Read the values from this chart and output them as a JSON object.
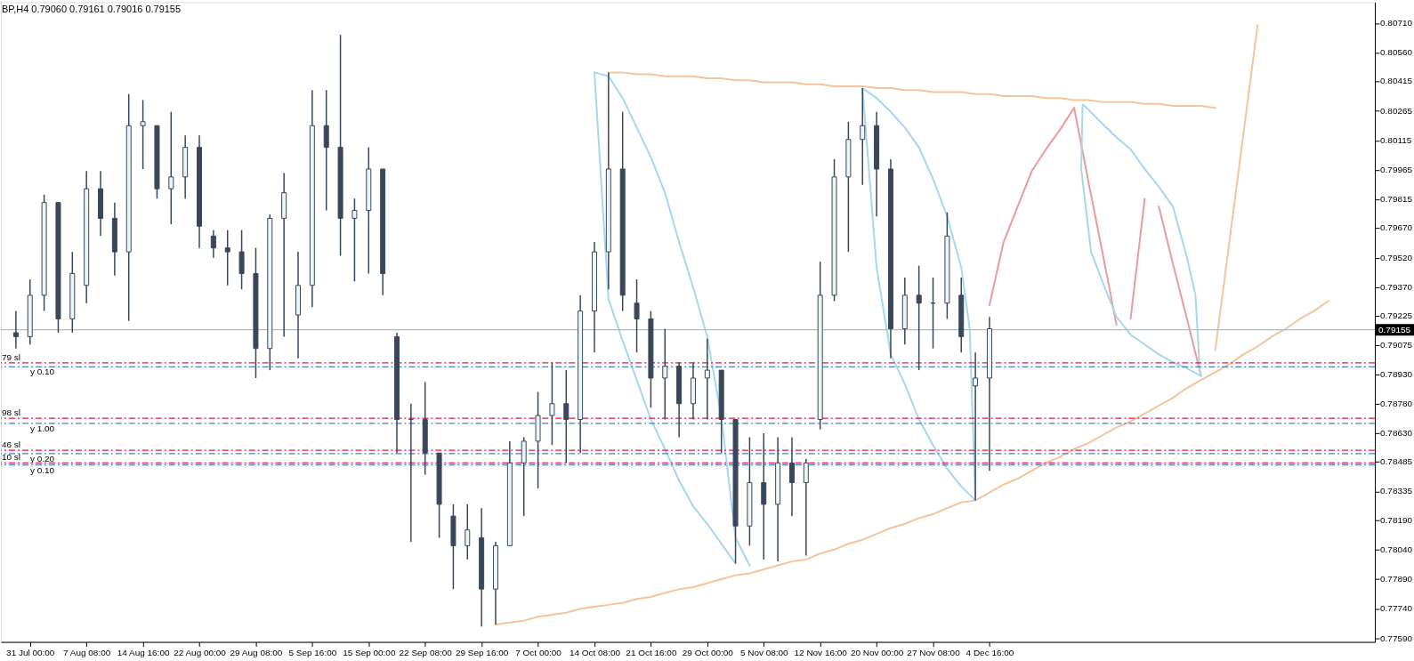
{
  "chart_data": {
    "type": "candlestick",
    "title": "BP,H4  0.79060 0.79161 0.79016 0.79155",
    "color": "#3a4759",
    "ylim": [
      0.77572,
      0.80816
    ],
    "yticks": [
      {
        "value": 0.8071,
        "label": "0.80710"
      },
      {
        "value": 0.8056,
        "label": "0.80560"
      },
      {
        "value": 0.80415,
        "label": "0.80415"
      },
      {
        "value": 0.80265,
        "label": "0.80265"
      },
      {
        "value": 0.80115,
        "label": "0.80115"
      },
      {
        "value": 0.79965,
        "label": "0.79965"
      },
      {
        "value": 0.79815,
        "label": "0.79815"
      },
      {
        "value": 0.7967,
        "label": "0.79670"
      },
      {
        "value": 0.7952,
        "label": "0.79520"
      },
      {
        "value": 0.7937,
        "label": "0.79370"
      },
      {
        "value": 0.79225,
        "label": "0.79225"
      },
      {
        "value": 0.79075,
        "label": "0.79075"
      },
      {
        "value": 0.7893,
        "label": "0.78930"
      },
      {
        "value": 0.7878,
        "label": "0.78780"
      },
      {
        "value": 0.7863,
        "label": "0.78630"
      },
      {
        "value": 0.78485,
        "label": "0.78485"
      },
      {
        "value": 0.78335,
        "label": "0.78335"
      },
      {
        "value": 0.7819,
        "label": "0.78190"
      },
      {
        "value": 0.7804,
        "label": "0.78040"
      },
      {
        "value": 0.7789,
        "label": "0.77890"
      },
      {
        "value": 0.7774,
        "label": "0.77740"
      },
      {
        "value": 0.7759,
        "label": "0.77590"
      }
    ],
    "categories": [
      null,
      "31 Jul 00:00",
      null,
      null,
      null,
      "7 Aug 08:00",
      null,
      null,
      null,
      "14 Aug 16:00",
      null,
      null,
      null,
      "22 Aug 00:00",
      null,
      null,
      null,
      "29 Aug 08:00",
      null,
      null,
      null,
      "5 Sep 16:00",
      null,
      null,
      null,
      "15 Sep 00:00",
      null,
      null,
      null,
      "22 Sep 08:00",
      null,
      null,
      null,
      "29 Sep 16:00",
      null,
      null,
      null,
      "7 Oct 00:00",
      null,
      null,
      null,
      "14 Oct 08:00",
      null,
      null,
      null,
      "21 Oct 16:00",
      null,
      null,
      null,
      "29 Oct 00:00",
      null,
      null,
      null,
      "5 Nov 08:00",
      null,
      null,
      null,
      "12 Nov 16:00",
      null,
      null,
      null,
      "20 Nov 00:00",
      null,
      null,
      null,
      "27 Nov 08:00",
      null,
      null,
      null,
      "4 Dec 16:00",
      null,
      null,
      null,
      null,
      null,
      null,
      null,
      null,
      null,
      null,
      null,
      null,
      null,
      null,
      null,
      null,
      null,
      null,
      null,
      null,
      null,
      null,
      null,
      null,
      null,
      null,
      null
    ],
    "ohlc": [
      [
        0.7914,
        0.7925,
        0.7906,
        0.7912
      ],
      [
        0.7912,
        0.7941,
        0.7908,
        0.7933
      ],
      [
        0.7933,
        0.7984,
        0.7925,
        0.798
      ],
      [
        0.798,
        0.798,
        0.7914,
        0.7921
      ],
      [
        0.7921,
        0.7955,
        0.7914,
        0.7944
      ],
      [
        0.7938,
        0.7996,
        0.7929,
        0.7987
      ],
      [
        0.7987,
        0.7996,
        0.7963,
        0.7972
      ],
      [
        0.7972,
        0.798,
        0.7943,
        0.7955
      ],
      [
        0.7955,
        0.8035,
        0.792,
        0.8019
      ],
      [
        0.8019,
        0.8032,
        0.7997,
        0.8021
      ],
      [
        0.8019,
        0.8019,
        0.7982,
        0.7987
      ],
      [
        0.7987,
        0.8026,
        0.7969,
        0.7993
      ],
      [
        0.7993,
        0.8014,
        0.7982,
        0.8008
      ],
      [
        0.8008,
        0.8014,
        0.7957,
        0.7968
      ],
      [
        0.7963,
        0.7966,
        0.7952,
        0.7957
      ],
      [
        0.7957,
        0.7966,
        0.7938,
        0.7955
      ],
      [
        0.7955,
        0.7966,
        0.7936,
        0.7944
      ],
      [
        0.7944,
        0.7957,
        0.7891,
        0.7906
      ],
      [
        0.7906,
        0.7974,
        0.7895,
        0.7972
      ],
      [
        0.7972,
        0.7995,
        0.7912,
        0.7985
      ],
      [
        0.7923,
        0.7955,
        0.7901,
        0.7938
      ],
      [
        0.7938,
        0.8037,
        0.7927,
        0.8019
      ],
      [
        0.8019,
        0.8037,
        0.7976,
        0.8008
      ],
      [
        0.8008,
        0.8065,
        0.7953,
        0.7972
      ],
      [
        0.7972,
        0.7982,
        0.794,
        0.7976
      ],
      [
        0.7976,
        0.8008,
        0.7944,
        0.7997
      ],
      [
        0.7997,
        0.7997,
        0.7933,
        0.7944
      ],
      [
        0.7912,
        0.7914,
        0.7853,
        0.787
      ],
      [
        0.787,
        0.7878,
        0.7808,
        0.787
      ],
      [
        0.787,
        0.7889,
        0.7842,
        0.7853
      ],
      [
        0.7853,
        0.7853,
        0.781,
        0.7827
      ],
      [
        0.7821,
        0.7827,
        0.7784,
        0.7806
      ],
      [
        0.7806,
        0.7827,
        0.7799,
        0.7814
      ],
      [
        0.781,
        0.7825,
        0.7765,
        0.7784
      ],
      [
        0.7784,
        0.7808,
        0.7766,
        0.7806
      ],
      [
        0.7806,
        0.7859,
        0.7806,
        0.7848
      ],
      [
        0.7848,
        0.7861,
        0.7821,
        0.7859
      ],
      [
        0.7859,
        0.7884,
        0.7835,
        0.7872
      ],
      [
        0.7872,
        0.7899,
        0.7857,
        0.7878
      ],
      [
        0.7878,
        0.7895,
        0.7848,
        0.787
      ],
      [
        0.787,
        0.7933,
        0.7853,
        0.7925
      ],
      [
        0.7925,
        0.796,
        0.7904,
        0.7955
      ],
      [
        0.7955,
        0.8046,
        0.7936,
        0.7997
      ],
      [
        0.7997,
        0.8026,
        0.7925,
        0.7933
      ],
      [
        0.7929,
        0.7941,
        0.7904,
        0.7921
      ],
      [
        0.7921,
        0.7925,
        0.7876,
        0.7891
      ],
      [
        0.7891,
        0.7916,
        0.787,
        0.7897
      ],
      [
        0.7897,
        0.7899,
        0.7861,
        0.7878
      ],
      [
        0.7878,
        0.7899,
        0.787,
        0.7891
      ],
      [
        0.7891,
        0.7911,
        0.787,
        0.7895
      ],
      [
        0.7895,
        0.7895,
        0.7853,
        0.787
      ],
      [
        0.787,
        0.787,
        0.7797,
        0.7816
      ],
      [
        0.7816,
        0.7861,
        0.7806,
        0.7838
      ],
      [
        0.7838,
        0.7863,
        0.7799,
        0.7827
      ],
      [
        0.7827,
        0.7861,
        0.7798,
        0.7848
      ],
      [
        0.7848,
        0.7861,
        0.7821,
        0.7838
      ],
      [
        0.7838,
        0.785,
        0.7801,
        0.7848
      ],
      [
        0.787,
        0.795,
        0.7865,
        0.7933
      ],
      [
        0.7933,
        0.8002,
        0.793,
        0.7993
      ],
      [
        0.7993,
        0.8021,
        0.7955,
        0.8012
      ],
      [
        0.8012,
        0.8038,
        0.7989,
        0.8019
      ],
      [
        0.8019,
        0.8026,
        0.7973,
        0.7997
      ],
      [
        0.7997,
        0.8002,
        0.7901,
        0.7916
      ],
      [
        0.7916,
        0.7942,
        0.7908,
        0.7933
      ],
      [
        0.7933,
        0.7948,
        0.7895,
        0.7929
      ],
      [
        0.7929,
        0.7942,
        0.7906,
        0.7929
      ],
      [
        0.7929,
        0.7975,
        0.7921,
        0.7963
      ],
      [
        0.7933,
        0.7942,
        0.7904,
        0.7912
      ],
      [
        0.7887,
        0.7904,
        0.7829,
        0.7891
      ],
      [
        0.7891,
        0.7922,
        0.7844,
        0.7916
      ],
      null,
      null,
      null,
      null,
      null,
      null,
      null,
      null,
      null,
      null,
      null,
      null,
      null,
      null,
      null,
      null,
      null,
      null,
      null,
      null,
      null,
      null,
      null,
      null,
      null,
      null,
      null
    ],
    "series": [
      {
        "type": "line",
        "color": "#f5c39c",
        "values": [
          null,
          null,
          null,
          null,
          null,
          null,
          null,
          null,
          null,
          null,
          null,
          null,
          null,
          null,
          null,
          null,
          null,
          null,
          null,
          null,
          null,
          null,
          null,
          null,
          null,
          null,
          null,
          null,
          null,
          null,
          null,
          null,
          null,
          null,
          null,
          null,
          null,
          null,
          null,
          null,
          null,
          null,
          0.8046,
          0.8046,
          0.8045,
          0.8045,
          0.8044,
          0.8044,
          0.8044,
          0.8043,
          0.8043,
          0.8042,
          0.8042,
          0.8041,
          0.8041,
          0.8041,
          0.804,
          0.804,
          0.8039,
          0.8039,
          0.8039,
          0.8038,
          0.8038,
          0.8037,
          0.8037,
          0.8036,
          0.8036,
          0.8036,
          0.8035,
          0.8035,
          0.8034,
          0.8034,
          0.8034,
          0.8033,
          0.8033,
          0.8032,
          0.8032,
          0.8031,
          0.8031,
          0.8031,
          0.803,
          0.803,
          0.8029,
          0.8029,
          0.8029,
          0.8028,
          null,
          null,
          null,
          null,
          null,
          null,
          null,
          null,
          null,
          null,
          null
        ]
      },
      {
        "type": "line",
        "color": "#f5c39c",
        "values": [
          null,
          null,
          null,
          null,
          null,
          null,
          null,
          null,
          null,
          null,
          null,
          null,
          null,
          null,
          null,
          null,
          null,
          null,
          null,
          null,
          null,
          null,
          null,
          null,
          null,
          null,
          null,
          null,
          null,
          null,
          null,
          null,
          null,
          null,
          0.7766,
          0.7767,
          0.7768,
          0.777,
          0.7771,
          0.7772,
          0.7774,
          0.7775,
          0.7776,
          0.7777,
          0.7779,
          0.778,
          0.7782,
          0.7784,
          0.7785,
          0.7787,
          0.7789,
          0.7791,
          0.7792,
          0.7794,
          0.7796,
          0.7798,
          0.7799,
          0.7802,
          0.7804,
          0.7807,
          0.7809,
          0.7812,
          0.7815,
          0.7817,
          0.782,
          0.7822,
          0.7825,
          0.7828,
          0.7829,
          0.7833,
          0.7837,
          0.784,
          0.7844,
          0.7848,
          0.7851,
          0.7855,
          0.7858,
          0.7862,
          0.7866,
          0.7869,
          0.7873,
          0.7877,
          0.7881,
          0.7886,
          0.789,
          0.7894,
          0.7898,
          0.7903,
          0.7907,
          0.7912,
          0.7916,
          0.7921,
          0.7925,
          0.793,
          null,
          null,
          null
        ]
      },
      {
        "type": "line",
        "color": "#f5c39c",
        "values": [
          null,
          null,
          null,
          null,
          null,
          null,
          null,
          null,
          null,
          null,
          null,
          null,
          null,
          null,
          null,
          null,
          null,
          null,
          null,
          null,
          null,
          null,
          null,
          null,
          null,
          null,
          null,
          null,
          null,
          null,
          null,
          null,
          null,
          null,
          null,
          null,
          null,
          null,
          null,
          null,
          null,
          null,
          null,
          null,
          null,
          null,
          null,
          null,
          null,
          null,
          null,
          null,
          null,
          null,
          null,
          null,
          null,
          null,
          null,
          null,
          null,
          null,
          null,
          null,
          null,
          null,
          null,
          null,
          null,
          null,
          null,
          null,
          null,
          null,
          null,
          null,
          null,
          null,
          null,
          null,
          null,
          null,
          null,
          null,
          null,
          0.7905,
          0.796,
          0.8015,
          0.807,
          null,
          null,
          null,
          null,
          null,
          null,
          null,
          null
        ]
      },
      {
        "type": "line",
        "color": "#a6d7ee",
        "values": [
          null,
          null,
          null,
          null,
          null,
          null,
          null,
          null,
          null,
          null,
          null,
          null,
          null,
          null,
          null,
          null,
          null,
          null,
          null,
          null,
          null,
          null,
          null,
          null,
          null,
          null,
          null,
          null,
          null,
          null,
          null,
          null,
          null,
          null,
          null,
          null,
          null,
          null,
          null,
          null,
          null,
          0.8046,
          0.7931,
          0.791,
          0.789,
          0.787,
          0.7855,
          0.7839,
          0.7826,
          0.7817,
          0.7807,
          0.7797,
          null,
          null,
          null,
          null,
          null,
          null,
          null,
          null,
          null,
          null,
          null,
          null,
          null,
          null,
          null,
          null,
          null,
          null,
          null,
          null,
          null,
          null,
          null,
          null,
          null,
          null,
          null,
          null,
          null,
          null,
          null,
          null,
          null,
          null,
          null,
          null,
          null,
          null,
          null,
          null,
          null,
          null,
          null,
          null,
          null
        ]
      },
      {
        "type": "line",
        "color": "#a6d7ee",
        "values": [
          null,
          null,
          null,
          null,
          null,
          null,
          null,
          null,
          null,
          null,
          null,
          null,
          null,
          null,
          null,
          null,
          null,
          null,
          null,
          null,
          null,
          null,
          null,
          null,
          null,
          null,
          null,
          null,
          null,
          null,
          null,
          null,
          null,
          null,
          null,
          null,
          null,
          null,
          null,
          null,
          null,
          0.8046,
          0.8044,
          0.8033,
          0.8018,
          0.8003,
          0.7985,
          0.796,
          0.7937,
          0.7912,
          0.7871,
          0.781,
          0.7796,
          null,
          null,
          null,
          null,
          null,
          null,
          null,
          null,
          null,
          null,
          null,
          null,
          null,
          null,
          null,
          null,
          null,
          null,
          null,
          null,
          null,
          null,
          null,
          null,
          null,
          null,
          null,
          null,
          null,
          null,
          null,
          null,
          null,
          null,
          null,
          null,
          null,
          null,
          null,
          null,
          null,
          null,
          null,
          null
        ]
      },
      {
        "type": "line",
        "color": "#eb9a9e",
        "values": [
          null,
          null,
          null,
          null,
          null,
          null,
          null,
          null,
          null,
          null,
          null,
          null,
          null,
          null,
          null,
          null,
          null,
          null,
          null,
          null,
          null,
          null,
          null,
          null,
          null,
          null,
          null,
          null,
          null,
          null,
          null,
          null,
          null,
          null,
          null,
          null,
          null,
          null,
          null,
          null,
          null,
          null,
          null,
          null,
          null,
          null,
          null,
          null,
          null,
          null,
          null,
          null,
          null,
          null,
          null,
          null,
          null,
          null,
          null,
          null,
          null,
          null,
          null,
          null,
          null,
          null,
          null,
          null,
          null,
          0.7928,
          0.796,
          0.7978,
          0.7996,
          0.8007,
          0.8017,
          0.8028,
          null,
          null,
          null,
          null,
          null,
          null,
          null,
          null,
          null,
          null,
          null,
          null,
          null,
          null,
          null,
          null,
          null,
          null,
          null,
          null,
          null
        ]
      },
      {
        "type": "line",
        "color": "#eb9a9e",
        "values": [
          null,
          null,
          null,
          null,
          null,
          null,
          null,
          null,
          null,
          null,
          null,
          null,
          null,
          null,
          null,
          null,
          null,
          null,
          null,
          null,
          null,
          null,
          null,
          null,
          null,
          null,
          null,
          null,
          null,
          null,
          null,
          null,
          null,
          null,
          null,
          null,
          null,
          null,
          null,
          null,
          null,
          null,
          null,
          null,
          null,
          null,
          null,
          null,
          null,
          null,
          null,
          null,
          null,
          null,
          null,
          null,
          null,
          null,
          null,
          null,
          null,
          null,
          null,
          null,
          null,
          null,
          null,
          null,
          null,
          null,
          null,
          null,
          null,
          null,
          null,
          0.8028,
          0.7991,
          0.7955,
          0.7918,
          null,
          null,
          null,
          null,
          null,
          null,
          null,
          null,
          null,
          null,
          null,
          null,
          null,
          null,
          null,
          null,
          null,
          null
        ]
      },
      {
        "type": "line",
        "color": "#eb9a9e",
        "values": [
          null,
          null,
          null,
          null,
          null,
          null,
          null,
          null,
          null,
          null,
          null,
          null,
          null,
          null,
          null,
          null,
          null,
          null,
          null,
          null,
          null,
          null,
          null,
          null,
          null,
          null,
          null,
          null,
          null,
          null,
          null,
          null,
          null,
          null,
          null,
          null,
          null,
          null,
          null,
          null,
          null,
          null,
          null,
          null,
          null,
          null,
          null,
          null,
          null,
          null,
          null,
          null,
          null,
          null,
          null,
          null,
          null,
          null,
          null,
          null,
          null,
          null,
          null,
          null,
          null,
          null,
          null,
          null,
          null,
          null,
          null,
          null,
          null,
          null,
          null,
          null,
          null,
          null,
          null,
          0.7921,
          0.7982,
          null,
          null,
          null,
          null,
          null,
          null,
          null,
          null,
          null,
          null,
          null,
          null,
          null,
          null,
          null,
          null
        ]
      },
      {
        "type": "line",
        "color": "#eb9a9e",
        "values": [
          null,
          null,
          null,
          null,
          null,
          null,
          null,
          null,
          null,
          null,
          null,
          null,
          null,
          null,
          null,
          null,
          null,
          null,
          null,
          null,
          null,
          null,
          null,
          null,
          null,
          null,
          null,
          null,
          null,
          null,
          null,
          null,
          null,
          null,
          null,
          null,
          null,
          null,
          null,
          null,
          null,
          null,
          null,
          null,
          null,
          null,
          null,
          null,
          null,
          null,
          null,
          null,
          null,
          null,
          null,
          null,
          null,
          null,
          null,
          null,
          null,
          null,
          null,
          null,
          null,
          null,
          null,
          null,
          null,
          null,
          null,
          null,
          null,
          null,
          null,
          null,
          null,
          null,
          null,
          null,
          null,
          0.7978,
          0.7949,
          0.7921,
          0.7892,
          null,
          null,
          null,
          null,
          null,
          null,
          null,
          null,
          null,
          null,
          null,
          null
        ]
      }
    ],
    "ref_lines": [
      {
        "axis": "y",
        "value": 0.78987,
        "label": "79 sl",
        "color": "#e8174a",
        "line_style": "dashed"
      },
      {
        "axis": "y",
        "value": 0.78967,
        "label": "y 0.10",
        "color": "#4a7fc0",
        "line_style": "dashed"
      },
      {
        "axis": "y",
        "value": 0.78706,
        "label": "98 sl",
        "color": "#e8174a",
        "line_style": "dashed"
      },
      {
        "axis": "y",
        "value": 0.7868,
        "label": "y 1.00",
        "color": "#4a7fc0",
        "line_style": "dashed"
      },
      {
        "axis": "y",
        "value": 0.78544,
        "label": "46 sl",
        "color": "#e8174a",
        "line_style": "dashed"
      },
      {
        "axis": "y",
        "value": 0.78527,
        "label": "y 0.20",
        "color": "#4a7fc0",
        "line_style": "dashed"
      },
      {
        "axis": "y",
        "value": 0.7848,
        "label": "10 sl",
        "color": "#e8174a",
        "line_style": "dashed"
      },
      {
        "axis": "y",
        "value": 0.78469,
        "label": "y 0.10",
        "color": "#4a7fc0",
        "line_style": "dashed"
      },
      {
        "axis": "y",
        "value": 0.79155,
        "label": "0.79155",
        "color": "#b4bcc0",
        "line_style": "solid"
      }
    ]
  }
}
